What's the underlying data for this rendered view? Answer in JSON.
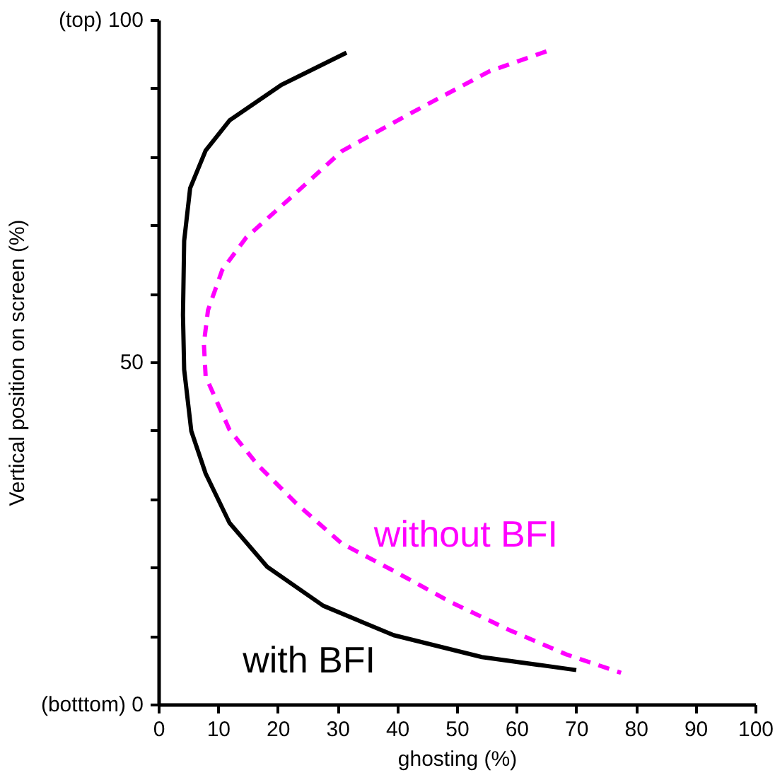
{
  "chart_data": {
    "type": "line",
    "xlabel": "ghosting (%)",
    "ylabel": "Vertical position on screen (%)",
    "xlim": [
      0,
      100
    ],
    "ylim": [
      0,
      100
    ],
    "xticks": [
      0,
      10,
      20,
      30,
      40,
      50,
      60,
      70,
      80,
      90,
      100
    ],
    "yticks": [
      {
        "value": 0,
        "label": "(botttom) 0"
      },
      {
        "value": 10,
        "label": null
      },
      {
        "value": 20,
        "label": null
      },
      {
        "value": 30,
        "label": null
      },
      {
        "value": 40,
        "label": null
      },
      50,
      {
        "value": 60,
        "label": null
      },
      {
        "value": 70,
        "label": null
      },
      {
        "value": 80,
        "label": null
      },
      {
        "value": 90,
        "label": null
      },
      {
        "value": 100,
        "label": "(top) 100"
      }
    ],
    "grid": false,
    "marker": "none",
    "series": [
      {
        "name": "with BFI",
        "color": "#000000",
        "line_style": "solid",
        "x": [
          31.4,
          20.5,
          11.8,
          7.8,
          5.2,
          4.2,
          4.0,
          4.2,
          5.4,
          7.8,
          11.8,
          18.1,
          27.5,
          39.3,
          54.1,
          69.9
        ],
        "values": [
          95.3,
          90.6,
          85.4,
          81,
          75.5,
          67.8,
          57,
          49,
          40,
          33.8,
          26.6,
          20.2,
          14.5,
          10.2,
          7,
          5.1
        ]
      },
      {
        "name": "without BFI",
        "color": "#ff00ff",
        "line_style": "dashed",
        "x": [
          64.9,
          55.4,
          42.9,
          30.6,
          21.9,
          14.6,
          10.6,
          8.2,
          7.5,
          7.8,
          11.8,
          16.5,
          22.8,
          30.6,
          39.3,
          48.7,
          58.8,
          68.2,
          77.4
        ],
        "values": [
          95.5,
          92.6,
          86.8,
          80.9,
          74,
          68.3,
          63.6,
          57.7,
          52.8,
          48,
          40.2,
          35.1,
          29.6,
          23.6,
          19.6,
          15.1,
          10.9,
          7.4,
          4.7
        ]
      }
    ]
  }
}
